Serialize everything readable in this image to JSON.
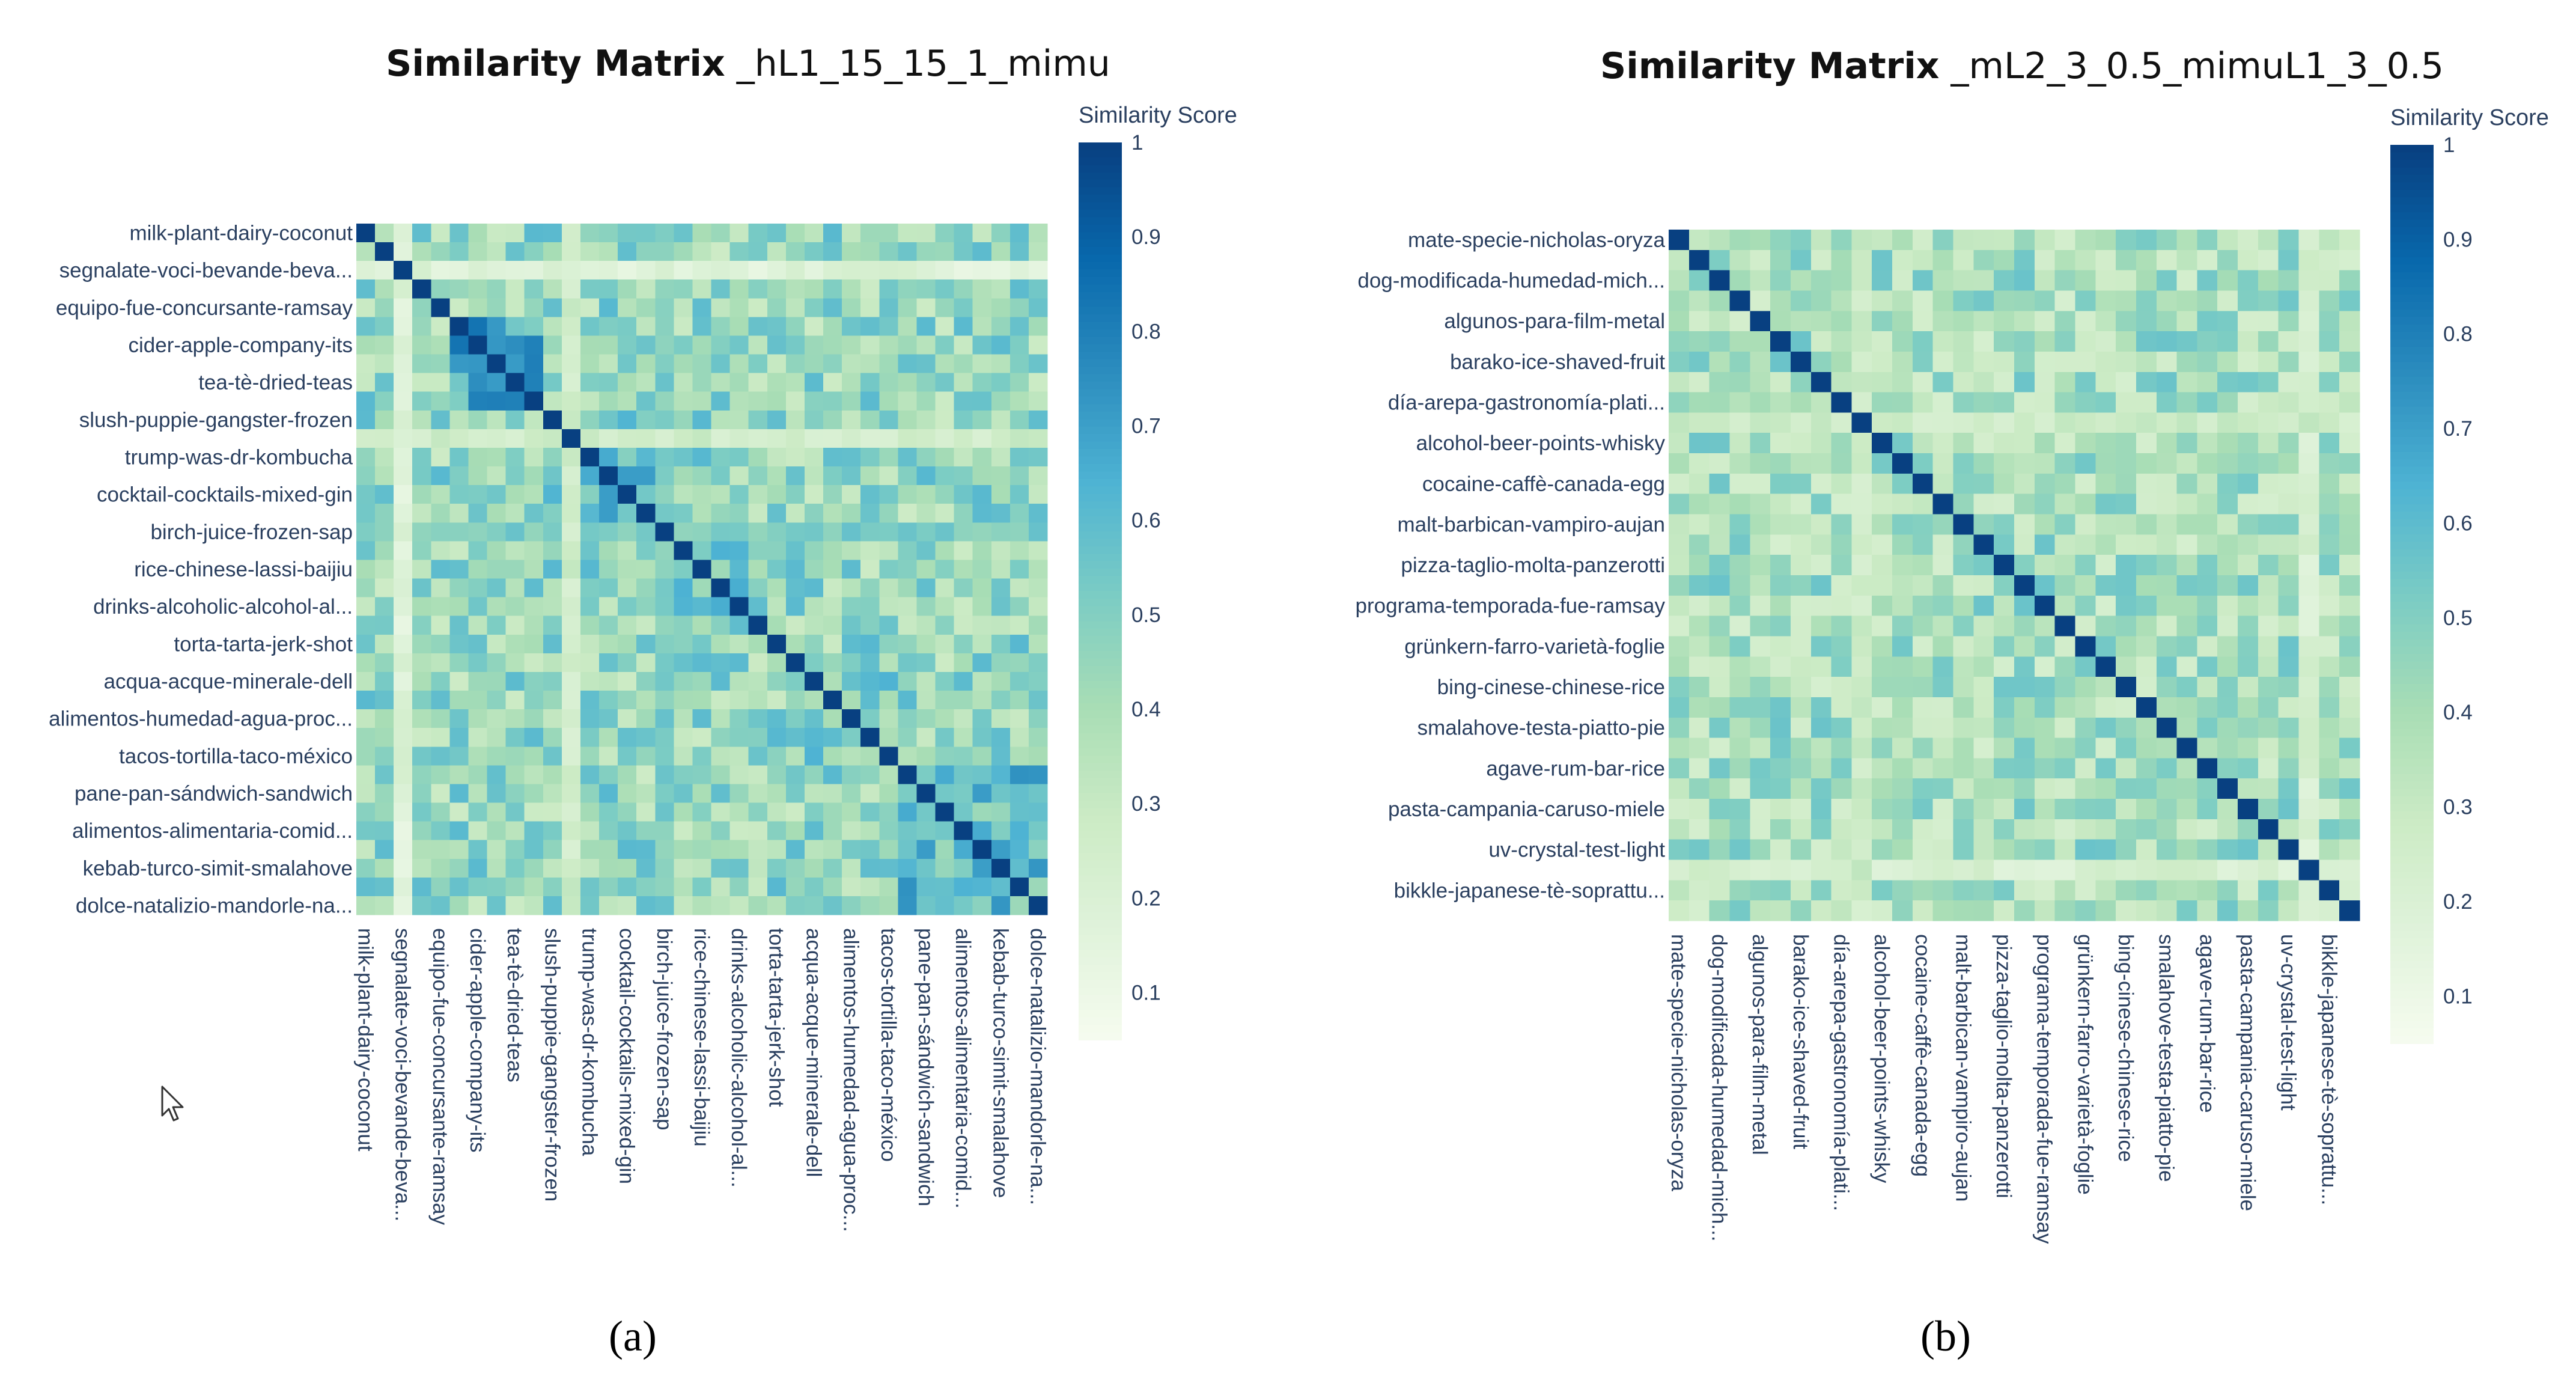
{
  "figure": {
    "cursor": "mouse-pointer-icon",
    "colorscale": [
      "#f7fcf0",
      "#e0f3db",
      "#ccebc5",
      "#a8ddb5",
      "#7bccc4",
      "#4eb3d3",
      "#2b8cbe",
      "#0868ac",
      "#084081"
    ]
  },
  "chart_data": [
    {
      "type": "heatmap",
      "panel_label": "(a)",
      "title_bold": "Similarity Matrix",
      "title_rest": " _hL1_15_15_1_mimu",
      "colorbar": {
        "title": "Similarity Score",
        "range": [
          0.05,
          1.0
        ],
        "ticks": [
          "0.1",
          "0.2",
          "0.3",
          "0.4",
          "0.5",
          "0.6",
          "0.7",
          "0.8",
          "0.9",
          "1"
        ]
      },
      "seed": 7,
      "n": 37,
      "blocks": [
        [
          5,
          10,
          0.68
        ],
        [
          10,
          17,
          0.56
        ],
        [
          17,
          23,
          0.5
        ],
        [
          23,
          29,
          0.52
        ],
        [
          29,
          37,
          0.6
        ]
      ],
      "dark_rows": [
        [
          2,
          0.18
        ],
        [
          11,
          0.26
        ],
        [
          16,
          0.52
        ]
      ],
      "base": 0.45,
      "labels": [
        "milk-plant-dairy-coconut",
        "segnalate-voci-bevande-beva...",
        "equipo-fue-concursante-ramsay",
        "cider-apple-company-its",
        "tea-tè-dried-teas",
        "slush-puppie-gangster-frozen",
        "trump-was-dr-kombucha",
        "cocktail-cocktails-mixed-gin",
        "birch-juice-frozen-sap",
        "rice-chinese-lassi-baijiu",
        "drinks-alcoholic-alcohol-al...",
        "torta-tarta-jerk-shot",
        "acqua-acque-minerale-dell",
        "alimentos-humedad-agua-proc...",
        "tacos-tortilla-taco-méxico",
        "pane-pan-sándwich-sandwich",
        "alimentos-alimentaria-comid...",
        "kebab-turco-simit-smalahove",
        "dolce-natalizio-mandorle-na..."
      ],
      "label_cells": [
        0,
        2,
        4,
        6,
        8,
        10,
        12,
        14,
        16,
        18,
        20,
        22,
        24,
        26,
        28,
        30,
        32,
        34,
        36
      ]
    },
    {
      "type": "heatmap",
      "panel_label": "(b)",
      "title_bold": "Similarity Matrix",
      "title_rest": " _mL2_3_0.5_mimuL1_3_0.5",
      "colorbar": {
        "title": "Similarity Score",
        "range": [
          0.05,
          1.0
        ],
        "ticks": [
          "0.1",
          "0.2",
          "0.3",
          "0.4",
          "0.5",
          "0.6",
          "0.7",
          "0.8",
          "0.9",
          "1"
        ]
      },
      "seed": 23,
      "n": 34,
      "blocks": [],
      "dark_rows": [
        [
          9,
          0.28
        ],
        [
          31,
          0.22
        ]
      ],
      "base": 0.4,
      "labels": [
        "mate-specie-nicholas-oryza",
        "dog-modificada-humedad-mich...",
        "algunos-para-film-metal",
        "barako-ice-shaved-fruit",
        "día-arepa-gastronomía-plati...",
        "alcohol-beer-points-whisky",
        "cocaine-caffè-canada-egg",
        "malt-barbican-vampiro-aujan",
        "pizza-taglio-molta-panzerotti",
        "programa-temporada-fue-ramsay",
        "grünkern-farro-varietà-foglie",
        "bing-cinese-chinese-rice",
        "smalahove-testa-piatto-pie",
        "agave-rum-bar-rice",
        "pasta-campania-caruso-miele",
        "uv-crystal-test-light",
        "bikkle-japanese-tè-soprattu..."
      ],
      "label_cells": [
        0,
        2,
        4,
        6,
        8,
        10,
        12,
        14,
        16,
        18,
        20,
        22,
        24,
        26,
        28,
        30,
        32
      ]
    }
  ]
}
